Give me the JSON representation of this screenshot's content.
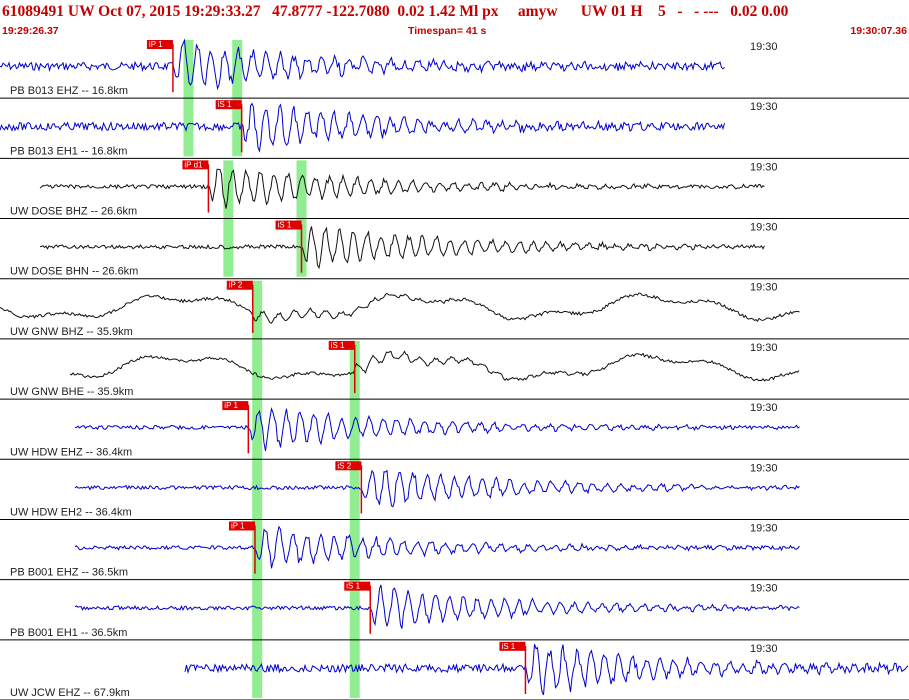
{
  "header": {
    "title": "61089491 UW Oct 07, 2015 19:29:33.27   47.8777 -122.7080  0.02 1.42 Ml px     amyw      UW 01 H    5   -   - ---   0.02 0.00",
    "start_time": "19:29:26.37",
    "timespan": "Timespan=  41 s",
    "end_time": "19:30:07.36"
  },
  "colors": {
    "title": "#c40000",
    "trace_blue": "#0000cc",
    "trace_black": "#111111",
    "pick_marker": "#e00000",
    "highlight": "#90ee90"
  },
  "chart_data": {
    "type": "line",
    "title": "",
    "xlabel": "",
    "ylabel": "",
    "time_tick_label": "19:30",
    "channels": [
      {
        "label": "PB B013 EHZ -- 16.8km",
        "color": "blue",
        "pick_label": "iP 1",
        "pick_time_s": 7.8,
        "amp_level": "high"
      },
      {
        "label": "PB B013 EH1 -- 16.8km",
        "color": "blue",
        "pick_label": "iS 1",
        "pick_time_s": 10.9,
        "amp_level": "high"
      },
      {
        "label": "UW DOSE BHZ -- 26.6km",
        "color": "black",
        "pick_label": "iP d1",
        "pick_time_s": 9.4,
        "amp_level": "medium"
      },
      {
        "label": "UW DOSE BHN -- 26.6km",
        "color": "black",
        "pick_label": "iS 1",
        "pick_time_s": 13.6,
        "amp_level": "medium"
      },
      {
        "label": "UW GNW BHZ -- 35.9km",
        "color": "black",
        "pick_label": "iP 2",
        "pick_time_s": 11.4,
        "amp_level": "low"
      },
      {
        "label": "UW GNW BHE -- 35.9km",
        "color": "black",
        "pick_label": "iS 1",
        "pick_time_s": 16.0,
        "amp_level": "low"
      },
      {
        "label": "UW HDW EHZ -- 36.4km",
        "color": "blue",
        "pick_label": "iP 1",
        "pick_time_s": 11.2,
        "amp_level": "medium"
      },
      {
        "label": "UW HDW EH2 -- 36.4km",
        "color": "blue",
        "pick_label": "iS 2",
        "pick_time_s": 16.3,
        "amp_level": "medium"
      },
      {
        "label": "PB B001 EHZ -- 36.5km",
        "color": "blue",
        "pick_label": "iP 1",
        "pick_time_s": 11.5,
        "amp_level": "medium"
      },
      {
        "label": "PB B001 EH1 -- 36.5km",
        "color": "blue",
        "pick_label": "iS 1",
        "pick_time_s": 16.7,
        "amp_level": "medium"
      },
      {
        "label": "UW JCW EHZ -- 67.9km",
        "color": "blue",
        "pick_label": "iS 1",
        "pick_time_s": 23.7,
        "amp_level": "high"
      }
    ],
    "highlight_bands_s": [
      8.5,
      10.7,
      10.3,
      13.6,
      11.6,
      16.0
    ]
  }
}
